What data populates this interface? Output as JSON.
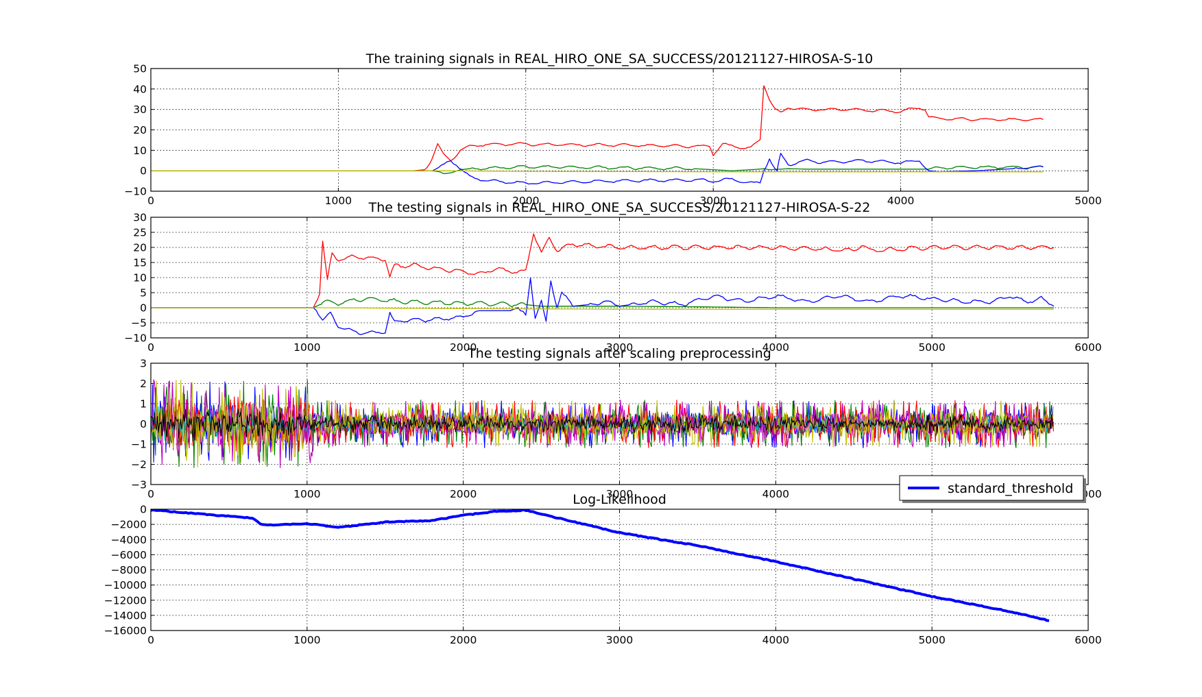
{
  "colors": {
    "red": "#ff0000",
    "green": "#008000",
    "blue": "#0000ff",
    "cyan": "#00bfbf",
    "magenta": "#bf00bf",
    "yellow": "#bfbf00",
    "black": "#000000"
  },
  "chart_data": [
    {
      "type": "line",
      "title": "The training signals in REAL_HIRO_ONE_SA_SUCCESS/20121127-HIROSA-S-10",
      "xlim": [
        0,
        5000
      ],
      "ylim": [
        -10,
        50
      ],
      "xticks": [
        "0",
        "1000",
        "2000",
        "3000",
        "4000",
        "5000"
      ],
      "yticks": [
        "50",
        "40",
        "30",
        "20",
        "10",
        "0",
        "−10"
      ],
      "grid": true,
      "series": [
        {
          "color": "red",
          "x": [
            0,
            1400,
            1460,
            1500,
            1530,
            1560,
            1600,
            1650,
            1700,
            1800,
            2000,
            2500,
            2900,
            2980,
            3000,
            3020,
            3050,
            3100,
            3200,
            3250,
            3270,
            3300,
            3330,
            3360,
            3400,
            3500,
            3700,
            4000,
            4100,
            4130,
            4150,
            4200,
            4500,
            4760
          ],
          "y": [
            0,
            0,
            0.5,
            6,
            13,
            8,
            5,
            10,
            12,
            13,
            13,
            12.5,
            12,
            12,
            8,
            10,
            13,
            12,
            11,
            15,
            42,
            35,
            30,
            28,
            31,
            30,
            30,
            29,
            31,
            30,
            26,
            25.5,
            25,
            25
          ]
        },
        {
          "color": "green",
          "x": [
            0,
            1500,
            1540,
            1560,
            1600,
            1650,
            1700,
            2000,
            2500,
            2900,
            3000,
            3100,
            3200,
            3270,
            3300,
            3400,
            3500,
            4000,
            4150,
            4200,
            4500,
            4760
          ],
          "y": [
            0,
            0,
            -0.5,
            -2,
            -1,
            0.5,
            1,
            2,
            1.5,
            1,
            0.5,
            0,
            0.5,
            1,
            0.5,
            1,
            0.8,
            0.8,
            0.8,
            1.5,
            1.8,
            1.8
          ]
        },
        {
          "color": "blue",
          "x": [
            0,
            1500,
            1550,
            1580,
            1600,
            1630,
            1700,
            1800,
            2000,
            2500,
            2900,
            3000,
            3100,
            3200,
            3250,
            3270,
            3300,
            3320,
            3340,
            3360,
            3400,
            3500,
            3600,
            3800,
            4000,
            4100,
            4150,
            4200,
            4400,
            4600,
            4760
          ],
          "y": [
            0,
            0,
            2,
            4,
            5,
            3,
            -3,
            -5,
            -6,
            -5,
            -4.5,
            -5,
            -4,
            -6,
            -6,
            0,
            6,
            2,
            0,
            8,
            3,
            5,
            4,
            5,
            4,
            5,
            0,
            -0.5,
            0,
            1,
            2
          ]
        },
        {
          "color": "yellow",
          "x": [
            0,
            1500,
            2000,
            3000,
            4000,
            4760
          ],
          "y": [
            0,
            0,
            -0.3,
            -0.5,
            -0.5,
            -0.5
          ]
        }
      ]
    },
    {
      "type": "line",
      "title": "The testing  signals in REAL_HIRO_ONE_SA_SUCCESS/20121127-HIROSA-S-22",
      "xlim": [
        0,
        6000
      ],
      "ylim": [
        -10,
        30
      ],
      "xticks": [
        "0",
        "1000",
        "2000",
        "3000",
        "4000",
        "5000",
        "6000"
      ],
      "yticks": [
        "30",
        "25",
        "20",
        "15",
        "10",
        "5",
        "0",
        "−5",
        "−10"
      ],
      "grid": true,
      "series": [
        {
          "color": "red",
          "x": [
            0,
            1040,
            1080,
            1100,
            1130,
            1160,
            1200,
            1300,
            1500,
            1530,
            1560,
            1600,
            1700,
            1800,
            2000,
            2100,
            2200,
            2300,
            2400,
            2450,
            2500,
            2550,
            2600,
            2700,
            3000,
            3500,
            4000,
            4500,
            4550,
            4600,
            5000,
            5500,
            5780
          ],
          "y": [
            0,
            0,
            5,
            22,
            9,
            18,
            16,
            17,
            16,
            10,
            14,
            14,
            14,
            13,
            12,
            11,
            13,
            12,
            12,
            25,
            18,
            23,
            19,
            21,
            20,
            20,
            20,
            19,
            21,
            19,
            20,
            20,
            20
          ]
        },
        {
          "color": "green",
          "x": [
            0,
            1040,
            1080,
            1100,
            1200,
            1300,
            1400,
            1500,
            1600,
            2000,
            2400,
            2500,
            3000,
            3500,
            4000,
            5000,
            5780
          ],
          "y": [
            0,
            0,
            1,
            2,
            1.5,
            2.5,
            3,
            2.5,
            2,
            1.5,
            1,
            0.5,
            0.5,
            0.3,
            0,
            0,
            0
          ]
        },
        {
          "color": "blue",
          "x": [
            0,
            1040,
            1060,
            1100,
            1150,
            1200,
            1300,
            1400,
            1500,
            1530,
            1560,
            1600,
            1700,
            1800,
            2000,
            2100,
            2200,
            2300,
            2350,
            2400,
            2430,
            2460,
            2500,
            2530,
            2560,
            2600,
            2630,
            2700,
            2800,
            2900,
            3000,
            3200,
            3400,
            3600,
            3800,
            4000,
            4200,
            4400,
            4600,
            4800,
            5000,
            5200,
            5400,
            5500,
            5600,
            5700,
            5780
          ],
          "y": [
            0,
            0,
            -1,
            -4,
            -2,
            -6,
            -8,
            -8.5,
            -8,
            -2,
            -5,
            -4,
            -4,
            -4,
            -3,
            -1,
            -1,
            -1,
            0,
            -3,
            10,
            -3,
            2,
            -5,
            9,
            0,
            5,
            0.5,
            1,
            2,
            0.5,
            2,
            1,
            4,
            2,
            4,
            2,
            4,
            2,
            4,
            3,
            2,
            2,
            4,
            2,
            3,
            0.5
          ]
        },
        {
          "color": "yellow",
          "x": [
            0,
            1040,
            2000,
            3000,
            4000,
            5000,
            5780
          ],
          "y": [
            0,
            0,
            -0.3,
            -0.5,
            -0.5,
            -0.5,
            -0.5
          ]
        }
      ]
    },
    {
      "type": "line",
      "title": "The testing  signals after scaling preprocessing",
      "xlim": [
        0,
        6000
      ],
      "ylim": [
        -3,
        3
      ],
      "xticks": [
        "0",
        "1000",
        "2000",
        "3000",
        "4000",
        "5000",
        "6000"
      ],
      "yticks": [
        "3",
        "2",
        "1",
        "0",
        "−1",
        "−2",
        "−3"
      ],
      "grid": true,
      "series_colors": [
        "blue",
        "green",
        "red",
        "cyan",
        "magenta",
        "yellow",
        "black"
      ],
      "x_range": [
        0,
        5780
      ],
      "amplitude_early": [
        0,
        1050,
        2.2
      ],
      "amplitude_late": [
        1050,
        5780,
        1.2
      ]
    },
    {
      "type": "line",
      "title": "Log-Likelihood",
      "xlim": [
        0,
        6000
      ],
      "ylim": [
        -16000,
        0
      ],
      "xticks": [
        "0",
        "1000",
        "2000",
        "3000",
        "4000",
        "5000",
        "6000"
      ],
      "yticks": [
        "0",
        "−2000",
        "−4000",
        "−6000",
        "−8000",
        "−10000",
        "−12000",
        "−14000",
        "−16000"
      ],
      "grid": true,
      "legend": {
        "position": "top-right",
        "labels": [
          "standard_threshold"
        ]
      },
      "series": [
        {
          "name": "standard_threshold",
          "color": "blue",
          "x": [
            0,
            300,
            600,
            650,
            700,
            750,
            800,
            1000,
            1200,
            1500,
            1800,
            2000,
            2200,
            2380,
            2400,
            3000,
            3500,
            4000,
            4500,
            5000,
            5500,
            5750
          ],
          "y": [
            -100,
            -600,
            -1100,
            -1200,
            -1900,
            -2100,
            -2100,
            -1900,
            -2400,
            -1700,
            -1500,
            -800,
            -300,
            -150,
            -150,
            -3100,
            -4800,
            -6900,
            -9200,
            -11500,
            -13500,
            -14700
          ]
        }
      ]
    }
  ]
}
